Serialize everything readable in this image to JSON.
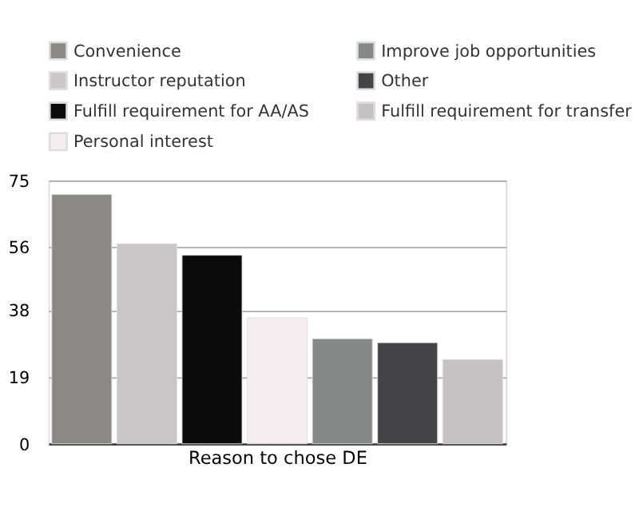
{
  "chart_data": {
    "type": "bar",
    "xlabel": "Reason to chose DE",
    "categories": [
      null
    ],
    "series": [
      {
        "name": "Convenience",
        "color": "#8c8888",
        "values": [
          71
        ]
      },
      {
        "name": "Instructor reputation",
        "color": "#cbc7c8",
        "values": [
          57
        ]
      },
      {
        "name": "Fulfill requirement for AA/AS",
        "color": "#0c0b0c",
        "values": [
          53.7
        ]
      },
      {
        "name": "Personal interest",
        "color": "#f5eef0",
        "values": [
          35.9
        ]
      },
      {
        "name": "Improve job opportunities",
        "color": "#868887",
        "values": [
          29.9
        ]
      },
      {
        "name": "Other",
        "color": "#444345",
        "values": [
          28.8
        ]
      },
      {
        "name": "Fulfill requirement for transfer",
        "color": "#c6c2c4",
        "values": [
          24
        ]
      }
    ],
    "ylim": [
      0,
      75
    ],
    "yticks": [
      0,
      19,
      38,
      56,
      75
    ],
    "grid": "y",
    "legend": "top"
  }
}
